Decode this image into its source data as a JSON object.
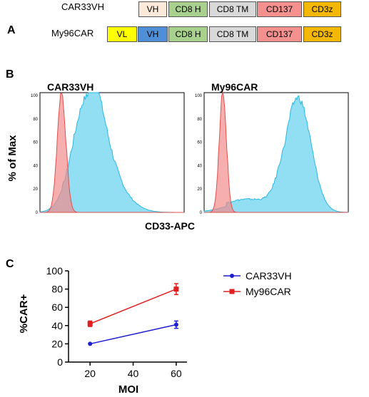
{
  "panel_a": {
    "letter": "A",
    "constructs": [
      {
        "name": "CAR33VH",
        "segments": [
          {
            "label": "VH",
            "color": "#fde9d9"
          },
          {
            "label": "CD8 H",
            "color": "#a9d18e"
          },
          {
            "label": "CD8 TM",
            "color": "#d9d9d9"
          },
          {
            "label": "CD137",
            "color": "#f4918f"
          },
          {
            "label": "CD3z",
            "color": "#f5b800"
          }
        ]
      },
      {
        "name": "My96CAR",
        "segments": [
          {
            "label": "VL",
            "color": "#ffff00"
          },
          {
            "label": "VH",
            "color": "#4f8fd8"
          },
          {
            "label": "CD8 H",
            "color": "#a9d18e"
          },
          {
            "label": "CD8 TM",
            "color": "#d9d9d9"
          },
          {
            "label": "CD137",
            "color": "#f4918f"
          },
          {
            "label": "CD3z",
            "color": "#f5b800"
          }
        ]
      }
    ]
  },
  "panel_b": {
    "letter": "B",
    "ylabel": "% of Max",
    "xlabel": "CD33-APC",
    "colors": {
      "control": "#f28b8b",
      "car": "#7fd8f0",
      "control_line": "#e0504f",
      "car_line": "#2ab8e0"
    },
    "histograms": [
      {
        "title": "CAR33VH",
        "yticks": [
          "100",
          "80",
          "60",
          "40",
          "20",
          "0"
        ]
      },
      {
        "title": "My96CAR",
        "yticks": [
          "100",
          "80",
          "60",
          "40",
          "20",
          "0"
        ]
      }
    ]
  },
  "chart_data": {
    "type": "line",
    "panel_letter": "C",
    "ylabel": "%CAR+",
    "xlabel": "MOI",
    "x": [
      20,
      60
    ],
    "xticks": [
      "20",
      "40",
      "60"
    ],
    "yticks": [
      "0",
      "20",
      "40",
      "60",
      "80",
      "100"
    ],
    "xlim": [
      10,
      65
    ],
    "ylim": [
      0,
      100
    ],
    "series": [
      {
        "name": "CAR33VH",
        "color": "#1f1fd0",
        "marker": "circle",
        "values": [
          20,
          41
        ],
        "errors": [
          0,
          4
        ]
      },
      {
        "name": "My96CAR",
        "color": "#e02020",
        "marker": "square",
        "values": [
          42,
          80
        ],
        "errors": [
          3,
          6
        ]
      }
    ],
    "legend": "right"
  }
}
